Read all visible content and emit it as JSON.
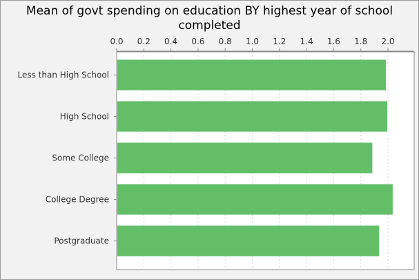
{
  "chart_data": {
    "type": "bar",
    "orientation": "horizontal",
    "title": "Mean of govt spending on education BY highest year of school\ncompleted",
    "categories": [
      "Less than High School",
      "High School",
      "Some College",
      "College Degree",
      "Postgraduate"
    ],
    "values": [
      1.98,
      1.99,
      1.88,
      2.03,
      1.93
    ],
    "xlim": [
      0.0,
      2.1
    ],
    "xticks": [
      "0.0",
      "0.2",
      "0.4",
      "0.6",
      "0.8",
      "1.0",
      "1.2",
      "1.4",
      "1.6",
      "1.8",
      "2.0"
    ],
    "xlabel": "",
    "ylabel": "",
    "grid": true,
    "xaxis_position": "top",
    "bar_color": "#62bf68"
  }
}
